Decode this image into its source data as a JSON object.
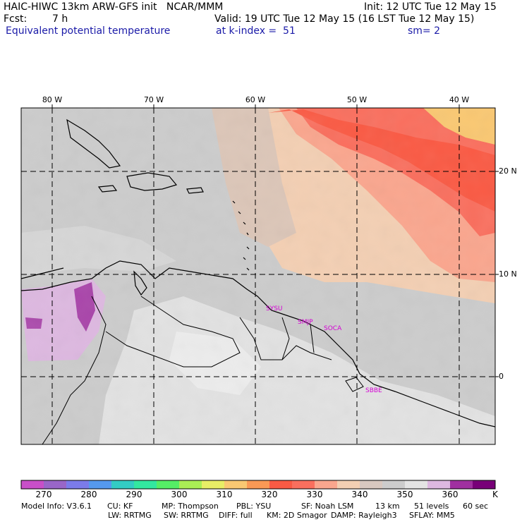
{
  "header": {
    "title_line1": "HAIC-HIWC 13km ARW-GFS init   NCAR/MMM",
    "init": "Init: 12 UTC Tue 12 May 15",
    "fcst_label": "Fcst:",
    "fcst_value": "7 h",
    "valid": "Valid: 19 UTC Tue 12 May 15 (16 LST Tue 12 May 15)",
    "field": "Equivalent potential temperature",
    "level": "at k-index =  51",
    "smoothing": "sm= 2"
  },
  "map": {
    "lon_labels": [
      "80 W",
      "70 W",
      "60 W",
      "50 W",
      "40 W"
    ],
    "lat_labels": [
      "20 N",
      "10 N",
      "0"
    ],
    "stations": [
      "SYSU",
      "SMJP",
      "SOCA",
      "SBBE"
    ]
  },
  "colorbar": {
    "colors": [
      "#c84fc8",
      "#9966c8",
      "#7b7bea",
      "#5599ee",
      "#33ccc4",
      "#33e8a0",
      "#55ee66",
      "#aaee55",
      "#e8ee66",
      "#fac872",
      "#fa9955",
      "#fa5a44",
      "#fa6f5e",
      "#faa68e",
      "#f3cfb3",
      "#d8c8c0",
      "#cccccc",
      "#e4e4e4",
      "#ddb8e0",
      "#a030a0",
      "#780078"
    ],
    "tick_labels": [
      "270",
      "280",
      "290",
      "300",
      "310",
      "320",
      "330",
      "340",
      "350",
      "360"
    ],
    "unit": "K"
  },
  "footer": {
    "line1": [
      "Model Info: V3.6.1",
      "CU: KF",
      "MP: Thompson",
      "PBL: YSU",
      "SF: Noah LSM",
      "13 km",
      "51 levels",
      "60 sec"
    ],
    "line2": [
      "LW: RRTMG",
      "SW: RRTMG",
      "DIFF: full",
      "KM: 2D Smagor",
      "DAMP: Rayleigh3",
      "SFLAY: MM5"
    ]
  }
}
